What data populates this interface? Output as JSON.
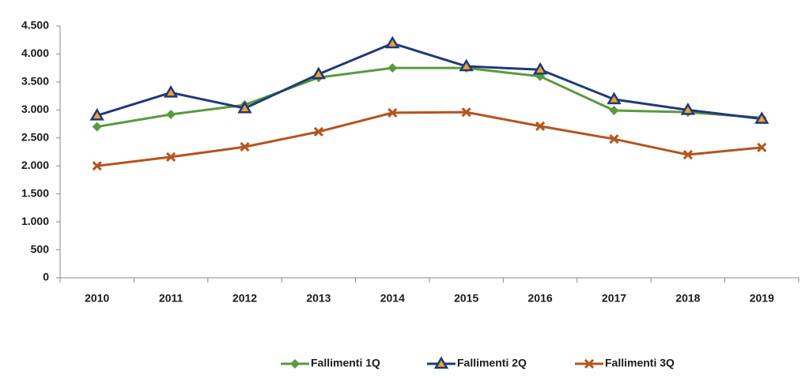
{
  "chart_data": {
    "type": "line",
    "categories": [
      "2010",
      "2011",
      "2012",
      "2013",
      "2014",
      "2015",
      "2016",
      "2017",
      "2018",
      "2019"
    ],
    "series": [
      {
        "name": "Fallimenti 1Q",
        "color": "#5a9a3c",
        "marker": "diamond",
        "values": [
          2700,
          2920,
          3090,
          3580,
          3750,
          3750,
          3600,
          2990,
          2960,
          2860
        ]
      },
      {
        "name": "Fallimenti 2Q",
        "color": "#1f3a7a",
        "marker": "triangle",
        "values": [
          2900,
          3310,
          3030,
          3640,
          4190,
          3780,
          3720,
          3190,
          3000,
          2840
        ]
      },
      {
        "name": "Fallimenti 3Q",
        "color": "#b5541c",
        "marker": "cross",
        "values": [
          2000,
          2160,
          2340,
          2610,
          2950,
          2960,
          2710,
          2480,
          2200,
          2330
        ]
      }
    ],
    "ylim": [
      0,
      4500
    ],
    "yticks": [
      0,
      500,
      {
        "value": 1000,
        "label": "1.000"
      },
      {
        "value": 1500,
        "label": "1.500"
      },
      {
        "value": 2000,
        "label": "2.000"
      },
      {
        "value": 2500,
        "label": "2.500"
      },
      {
        "value": 3000,
        "label": "3.000"
      },
      {
        "value": 3500,
        "label": "3.500"
      },
      {
        "value": 4000,
        "label": "4.000"
      },
      {
        "value": 4500,
        "label": "4.500"
      }
    ],
    "legend": "bottom"
  }
}
